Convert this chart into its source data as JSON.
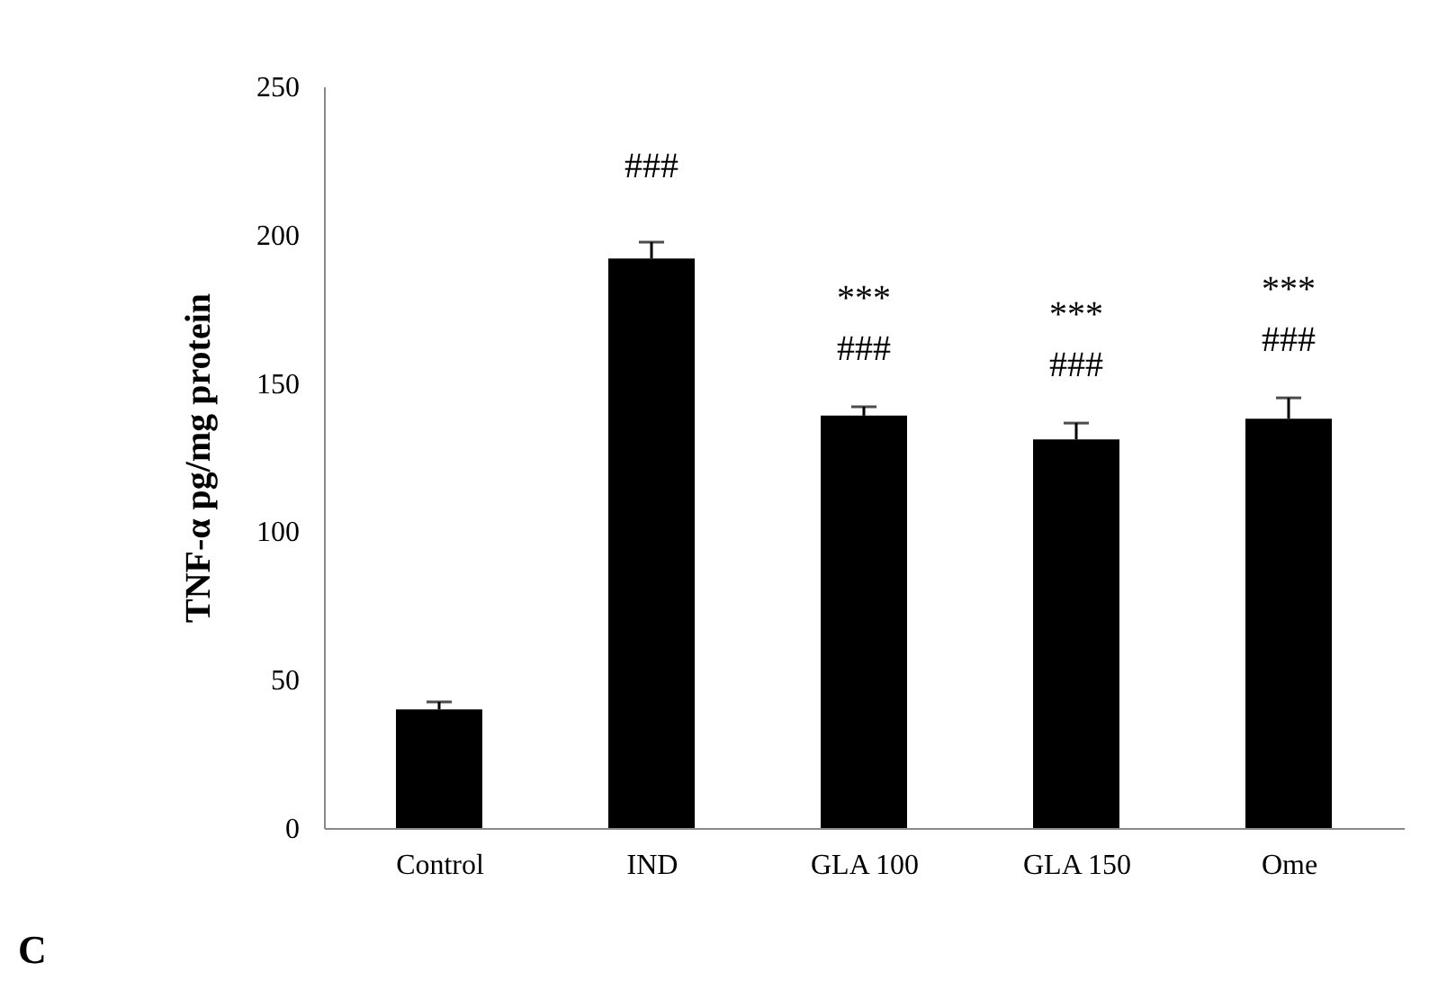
{
  "chart_data": {
    "type": "bar",
    "ylabel": "TNF-α pg/mg protein",
    "categories": [
      "Control",
      "IND",
      "GLA 100",
      "GLA 150",
      "Ome"
    ],
    "values": [
      40,
      192,
      139,
      131,
      138
    ],
    "errors": [
      2.5,
      5.5,
      3,
      5.5,
      7
    ],
    "color": "#000000",
    "ylim": [
      0,
      250
    ],
    "yticks": [
      0,
      50,
      100,
      150,
      200,
      250
    ],
    "grid": false,
    "annotations": [
      "###",
      "***",
      "###",
      "***",
      "###",
      "***",
      "###",
      "C"
    ]
  }
}
